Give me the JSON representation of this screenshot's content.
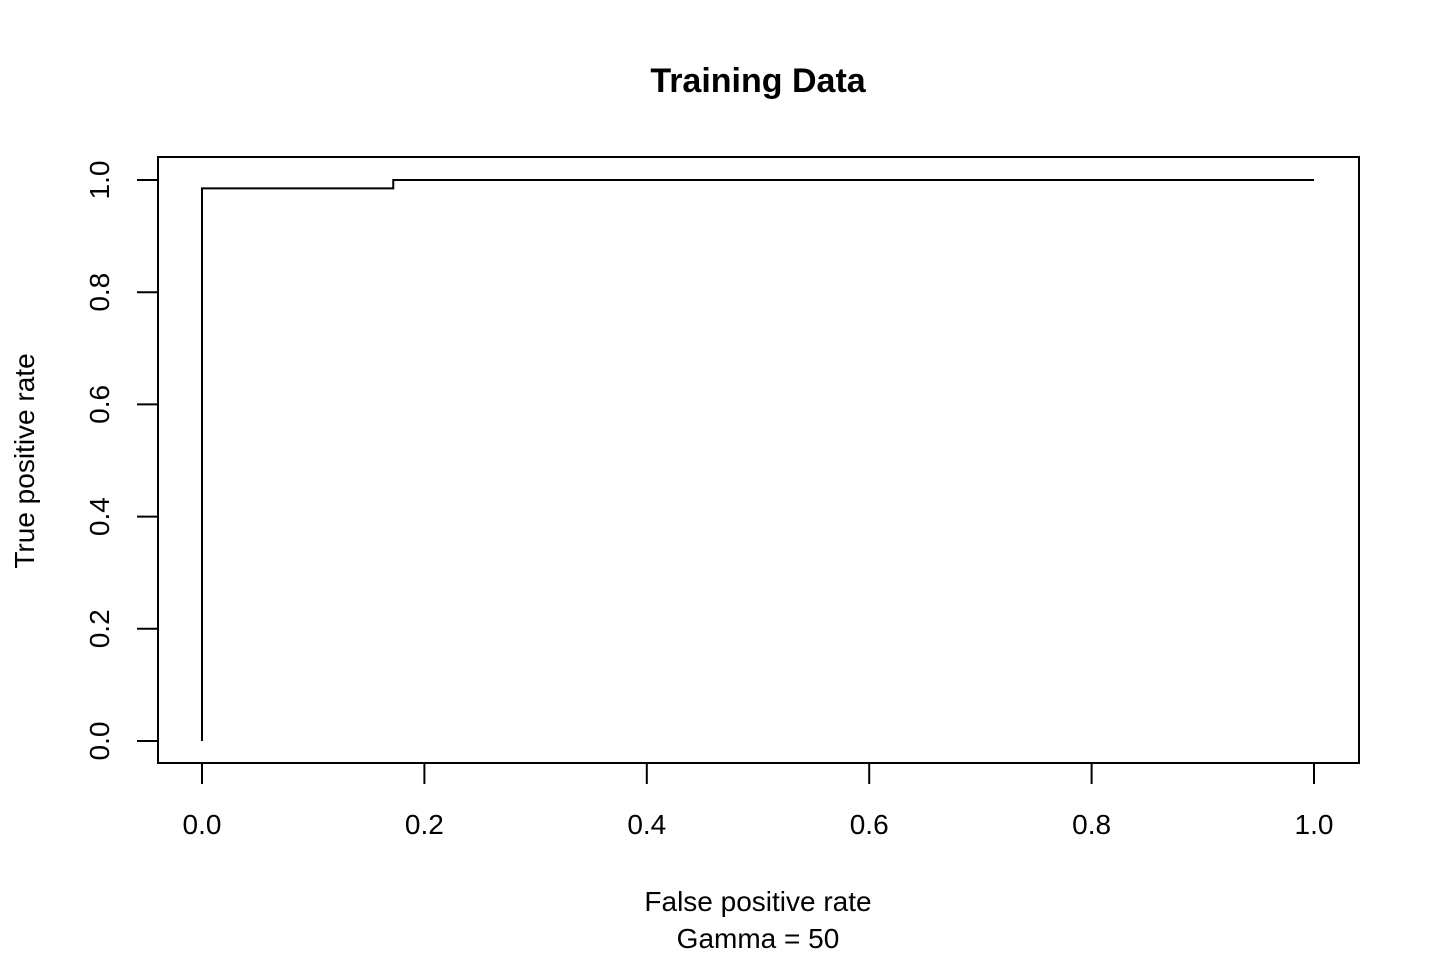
{
  "chart_data": {
    "type": "line",
    "title": "Training Data",
    "xlabel": "False positive rate",
    "subtitle": "Gamma = 50",
    "ylabel": "True positive rate",
    "xlim": [
      0.0,
      1.0
    ],
    "ylim": [
      0.0,
      1.0
    ],
    "x_ticks": [
      0.0,
      0.2,
      0.4,
      0.6,
      0.8,
      1.0
    ],
    "x_tick_labels": [
      "0.0",
      "0.2",
      "0.4",
      "0.6",
      "0.8",
      "1.0"
    ],
    "y_ticks": [
      0.0,
      0.2,
      0.4,
      0.6,
      0.8,
      1.0
    ],
    "y_tick_labels": [
      "0.0",
      "0.2",
      "0.4",
      "0.6",
      "0.8",
      "1.0"
    ],
    "grid": false,
    "legend": "none",
    "series": [
      {
        "x": [
          0.0,
          0.0,
          0.172,
          0.172,
          1.0
        ],
        "y": [
          0.0,
          0.985,
          0.985,
          1.0,
          1.0
        ]
      }
    ]
  }
}
